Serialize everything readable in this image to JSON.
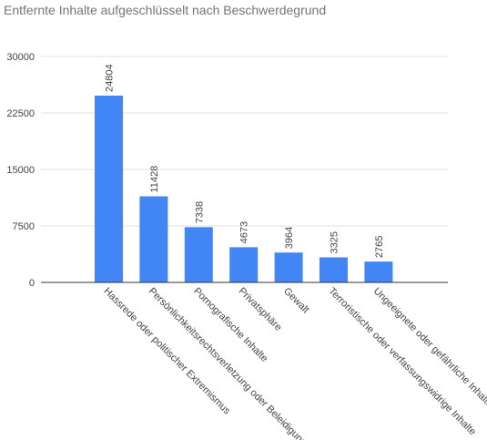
{
  "chart_data": {
    "type": "bar",
    "title": "Entfernte Inhalte aufgeschlüsselt nach Beschwerdegrund",
    "xlabel": "",
    "ylabel": "",
    "categories": [
      "Hassrede oder politischer Extremismus",
      "Persönlichkeitsrechtsverletzung oder Beleidigung",
      "Pornografische Inhalte",
      "Privatsphäre",
      "Gewalt",
      "Terroristische oder verfassungswidrige Inhalte",
      "Ungeeignete oder gefährliche Inhalte"
    ],
    "values": [
      24804,
      11428,
      7338,
      4673,
      3964,
      3325,
      2765
    ],
    "yticks": [
      0,
      7500,
      15000,
      22500,
      30000
    ],
    "ylim": [
      0,
      30000
    ],
    "grid": true,
    "bar_color": "#4285f4",
    "gridline_color": "#e0e0e0",
    "baseline_color": "#333333",
    "text_color": "#444444"
  }
}
